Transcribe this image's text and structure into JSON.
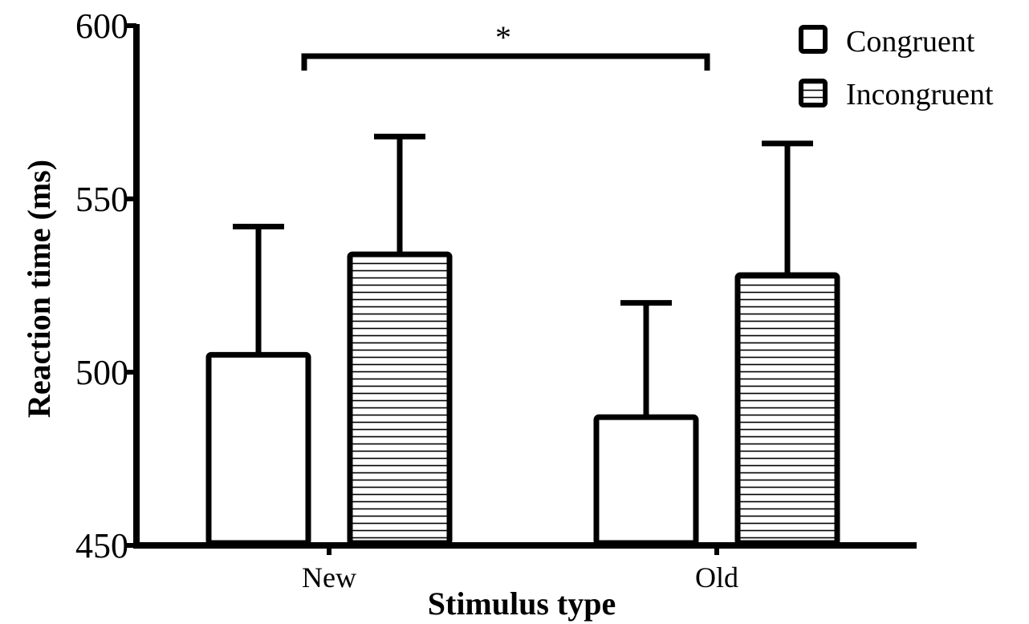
{
  "chart_data": {
    "type": "bar",
    "title": "",
    "xlabel": "Stimulus type",
    "ylabel": "Reaction time (ms)",
    "ylim": [
      450,
      600
    ],
    "yticks": [
      450,
      500,
      550,
      600
    ],
    "categories": [
      "New",
      "Old"
    ],
    "series": [
      {
        "name": "Congruent",
        "values": [
          505,
          487
        ],
        "error": [
          37,
          33
        ],
        "fill": "#ffffff",
        "pattern": "none"
      },
      {
        "name": "Incongruent",
        "values": [
          534,
          528
        ],
        "error": [
          34,
          38
        ],
        "fill": "#ffffff",
        "pattern": "horizontal-lines"
      }
    ],
    "legend": {
      "position": "top-right"
    },
    "significance": {
      "label": "*",
      "between": [
        "New",
        "Old"
      ]
    },
    "grid": false,
    "colors": {
      "stroke": "#000000",
      "fill": "#ffffff"
    }
  }
}
